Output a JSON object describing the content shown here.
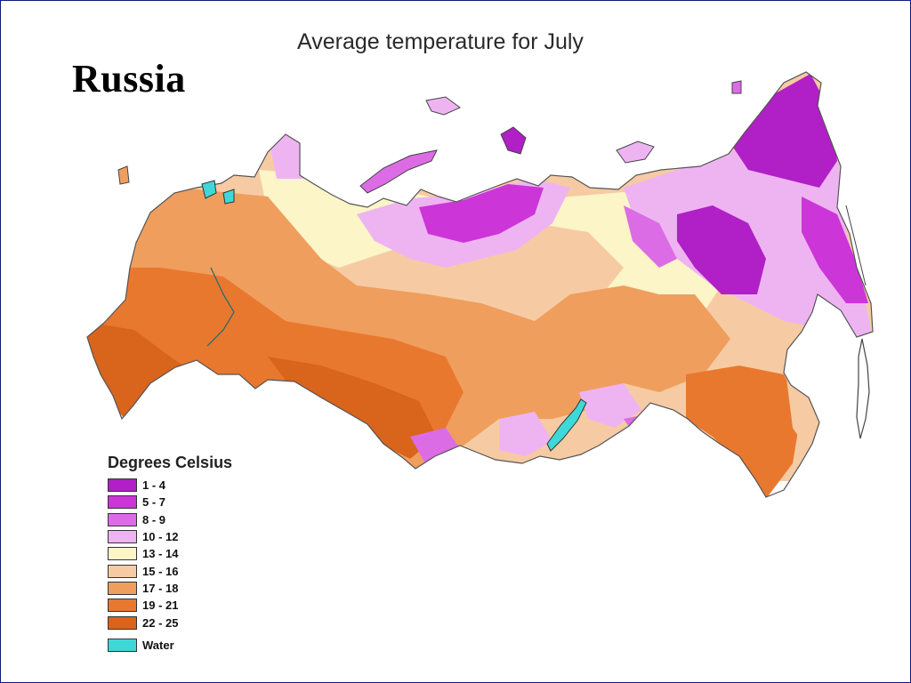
{
  "slide": {
    "title": "Russia"
  },
  "map": {
    "title": "Average temperature for July",
    "legend": {
      "title": "Degrees Celsius",
      "items": [
        {
          "label": "1 - 4",
          "color": "#b11fc6"
        },
        {
          "label": "5 - 7",
          "color": "#cc35d8"
        },
        {
          "label": "8 - 9",
          "color": "#dc6ce6"
        },
        {
          "label": "10 - 12",
          "color": "#eeb4f2"
        },
        {
          "label": "13 - 14",
          "color": "#fbf5c8"
        },
        {
          "label": "15 - 16",
          "color": "#f6cba3"
        },
        {
          "label": "17 - 18",
          "color": "#ef9e5e"
        },
        {
          "label": "19 - 21",
          "color": "#e9782f"
        },
        {
          "label": "22 - 25",
          "color": "#d9641c"
        }
      ],
      "water": {
        "label": "Water",
        "color": "#3fd8d8"
      }
    }
  }
}
